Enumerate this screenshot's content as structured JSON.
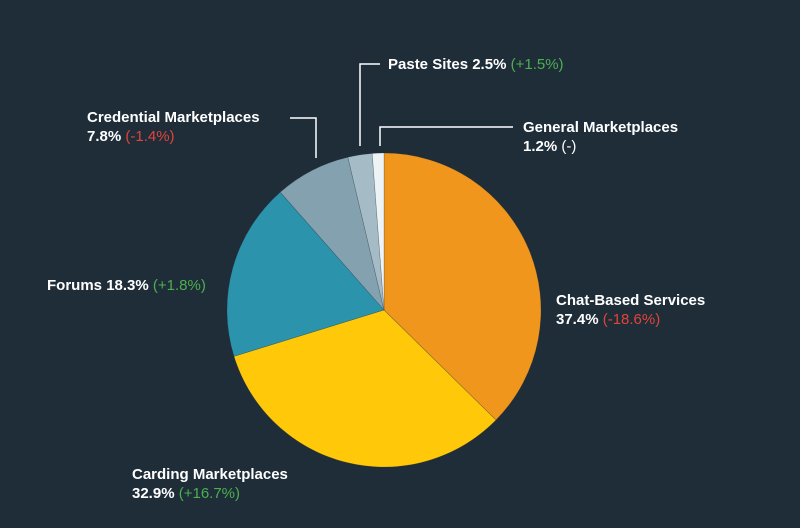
{
  "chart_data": {
    "type": "pie",
    "start_angle_deg": 0,
    "direction": "clockwise",
    "colors": {
      "positive": "#4caf50",
      "negative": "#e0443a",
      "neutral": "#ffffff",
      "leader_line": "#ffffff"
    },
    "slices": [
      {
        "name": "Chat-Based Services",
        "value": 37.4,
        "value_label": "37.4%",
        "change": "(-18.6%)",
        "trend": "negative",
        "color": "#f0961c"
      },
      {
        "name": "Carding Marketplaces",
        "value": 32.9,
        "value_label": "32.9%",
        "change": "(+16.7%)",
        "trend": "positive",
        "color": "#ffc90a"
      },
      {
        "name": "Forums",
        "value": 18.3,
        "value_label": "18.3%",
        "change": "(+1.8%)",
        "trend": "positive",
        "color": "#2c93ad"
      },
      {
        "name": "Credential Marketplaces",
        "value": 7.8,
        "value_label": "7.8%",
        "change": "(-1.4%)",
        "trend": "negative",
        "color": "#84a1b0"
      },
      {
        "name": "Paste Sites",
        "value": 2.5,
        "value_label": "2.5%",
        "change": "(+1.5%)",
        "trend": "positive",
        "color": "#a5bcc7"
      },
      {
        "name": "General Marketplaces",
        "value": 1.2,
        "value_label": "1.2%",
        "change": "(-)",
        "trend": "neutral",
        "color": "#eef3f5"
      }
    ]
  }
}
